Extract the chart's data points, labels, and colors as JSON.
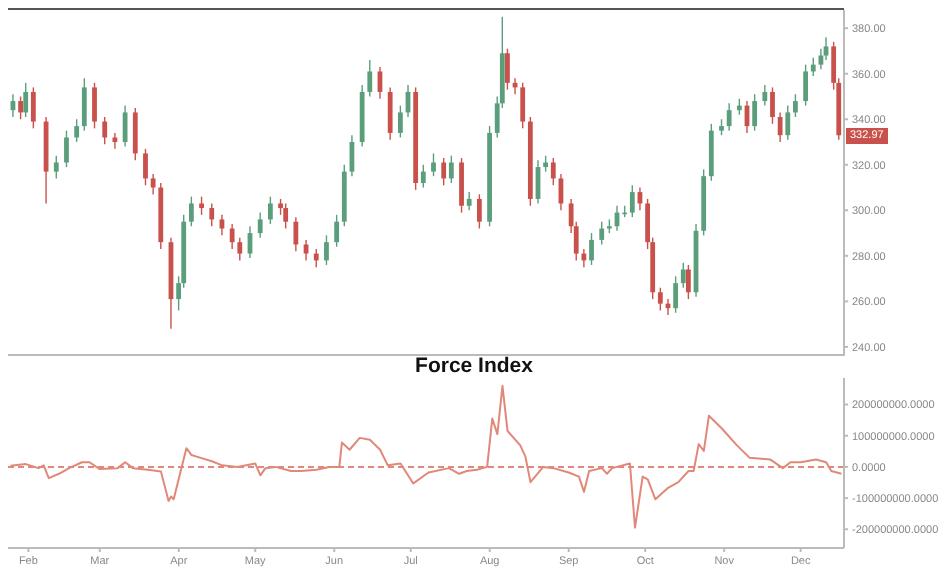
{
  "chart_data": [
    {
      "type": "candlestick",
      "x": [
        "--01-26",
        "--01-29",
        "--01-31",
        "--02-03",
        "--02-08",
        "--02-12",
        "--02-16",
        "--02-20",
        "--02-23",
        "--02-27",
        "--03-03",
        "--03-07",
        "--03-11",
        "--03-15",
        "--03-19",
        "--03-22",
        "--03-25",
        "--03-29",
        "--04-01",
        "--04-03",
        "--04-06",
        "--04-10",
        "--04-14",
        "--04-18",
        "--04-22",
        "--04-25",
        "--04-29",
        "--05-03",
        "--05-07",
        "--05-11",
        "--05-13",
        "--05-17",
        "--05-21",
        "--05-25",
        "--05-29",
        "--06-02",
        "--06-05",
        "--06-08",
        "--06-12",
        "--06-15",
        "--06-19",
        "--06-23",
        "--06-27",
        "--06-30",
        "--07-03",
        "--07-06",
        "--07-10",
        "--07-14",
        "--07-17",
        "--07-21",
        "--07-24",
        "--07-28",
        "--08-01",
        "--08-04",
        "--08-06",
        "--08-08",
        "--08-11",
        "--08-14",
        "--08-17",
        "--08-20",
        "--08-23",
        "--08-26",
        "--08-29",
        "--09-02",
        "--09-04",
        "--09-07",
        "--09-10",
        "--09-14",
        "--09-17",
        "--09-20",
        "--09-23",
        "--09-26",
        "--09-29",
        "--10-02",
        "--10-04",
        "--10-07",
        "--10-10",
        "--10-13",
        "--10-16",
        "--10-18",
        "--10-21",
        "--10-24",
        "--10-27",
        "--10-31",
        "--11-03",
        "--11-07",
        "--11-10",
        "--11-13",
        "--11-17",
        "--11-20",
        "--11-23",
        "--11-26",
        "--11-29",
        "--12-03",
        "--12-06",
        "--12-09",
        "--12-11",
        "--12-14",
        "--12-16"
      ],
      "ohlc": [
        [
          344,
          351,
          341,
          348
        ],
        [
          348,
          350,
          340,
          343
        ],
        [
          343,
          356,
          341,
          352
        ],
        [
          352,
          354,
          336,
          339
        ],
        [
          339,
          341,
          303,
          317
        ],
        [
          317,
          324,
          314,
          321
        ],
        [
          321,
          335,
          319,
          332
        ],
        [
          332,
          340,
          330,
          337
        ],
        [
          337,
          358,
          335,
          354
        ],
        [
          354,
          356,
          336,
          339
        ],
        [
          339,
          341,
          329,
          332
        ],
        [
          332,
          334,
          327,
          330
        ],
        [
          330,
          346,
          328,
          343
        ],
        [
          343,
          345,
          322,
          325
        ],
        [
          325,
          327,
          311,
          314
        ],
        [
          314,
          316,
          307,
          310
        ],
        [
          310,
          312,
          283,
          286
        ],
        [
          286,
          288,
          248,
          261
        ],
        [
          261,
          271,
          256,
          268
        ],
        [
          268,
          298,
          266,
          295
        ],
        [
          295,
          306,
          293,
          303
        ],
        [
          303,
          306,
          298,
          301
        ],
        [
          301,
          303,
          293,
          296
        ],
        [
          296,
          298,
          289,
          292
        ],
        [
          292,
          294,
          283,
          286
        ],
        [
          286,
          288,
          278,
          281
        ],
        [
          281,
          293,
          279,
          290
        ],
        [
          290,
          299,
          288,
          296
        ],
        [
          296,
          306,
          294,
          303
        ],
        [
          303,
          305,
          298,
          301
        ],
        [
          301,
          303,
          292,
          295
        ],
        [
          295,
          297,
          282,
          285
        ],
        [
          285,
          287,
          278,
          281
        ],
        [
          281,
          283,
          275,
          278
        ],
        [
          278,
          289,
          276,
          286
        ],
        [
          286,
          298,
          284,
          295
        ],
        [
          295,
          320,
          293,
          317
        ],
        [
          317,
          333,
          315,
          330
        ],
        [
          330,
          355,
          328,
          352
        ],
        [
          352,
          366,
          350,
          361
        ],
        [
          361,
          363,
          349,
          352
        ],
        [
          352,
          354,
          331,
          334
        ],
        [
          334,
          346,
          332,
          343
        ],
        [
          343,
          355,
          341,
          352
        ],
        [
          352,
          354,
          309,
          312
        ],
        [
          312,
          320,
          310,
          317
        ],
        [
          317,
          325,
          315,
          321
        ],
        [
          321,
          323,
          311,
          314
        ],
        [
          314,
          324,
          312,
          321
        ],
        [
          321,
          323,
          299,
          302
        ],
        [
          302,
          308,
          300,
          305
        ],
        [
          305,
          307,
          292,
          295
        ],
        [
          295,
          337,
          293,
          334
        ],
        [
          334,
          350,
          332,
          347
        ],
        [
          347,
          385,
          345,
          369
        ],
        [
          369,
          371,
          353,
          356
        ],
        [
          356,
          358,
          351,
          354
        ],
        [
          354,
          356,
          336,
          339
        ],
        [
          339,
          341,
          302,
          305
        ],
        [
          305,
          322,
          303,
          319
        ],
        [
          319,
          324,
          317,
          321
        ],
        [
          321,
          323,
          311,
          314
        ],
        [
          314,
          316,
          300,
          303
        ],
        [
          303,
          305,
          290,
          293
        ],
        [
          293,
          295,
          278,
          281
        ],
        [
          281,
          283,
          275,
          278
        ],
        [
          278,
          290,
          276,
          287
        ],
        [
          287,
          295,
          285,
          292
        ],
        [
          292,
          296,
          290,
          293
        ],
        [
          293,
          302,
          291,
          299
        ],
        [
          299,
          302,
          297,
          299
        ],
        [
          299,
          311,
          297,
          308
        ],
        [
          308,
          310,
          300,
          303
        ],
        [
          303,
          305,
          283,
          286
        ],
        [
          286,
          288,
          261,
          264
        ],
        [
          264,
          266,
          256,
          259
        ],
        [
          259,
          261,
          254,
          257
        ],
        [
          257,
          271,
          255,
          268
        ],
        [
          268,
          277,
          266,
          274
        ],
        [
          274,
          276,
          261,
          264
        ],
        [
          264,
          294,
          262,
          291
        ],
        [
          291,
          318,
          289,
          315
        ],
        [
          315,
          338,
          313,
          335
        ],
        [
          335,
          340,
          333,
          337
        ],
        [
          337,
          347,
          335,
          344
        ],
        [
          344,
          349,
          342,
          346
        ],
        [
          346,
          348,
          334,
          337
        ],
        [
          337,
          351,
          335,
          348
        ],
        [
          348,
          355,
          346,
          352
        ],
        [
          352,
          354,
          338,
          341
        ],
        [
          341,
          343,
          330,
          333
        ],
        [
          333,
          346,
          331,
          343
        ],
        [
          343,
          351,
          341,
          348
        ],
        [
          348,
          364,
          346,
          361
        ],
        [
          361,
          367,
          359,
          364
        ],
        [
          364,
          371,
          362,
          368
        ],
        [
          368,
          376,
          366,
          372
        ],
        [
          372,
          374,
          353,
          356
        ],
        [
          356,
          358,
          331,
          332.97
        ]
      ],
      "xlim": [
        "--01-24",
        "--12-18"
      ],
      "ylim": [
        236,
        388
      ],
      "yticks": [
        {
          "value": 240,
          "label": "240.00"
        },
        {
          "value": 260,
          "label": "260.00"
        },
        {
          "value": 280,
          "label": "280.00"
        },
        {
          "value": 300,
          "label": "300.00"
        },
        {
          "value": 320,
          "label": "320.00"
        },
        {
          "value": 340,
          "label": "340.00"
        },
        {
          "value": 360,
          "label": "360.00"
        },
        {
          "value": 380,
          "label": "380.00"
        }
      ],
      "tick_labels": "y",
      "annotations": [
        {
          "text": "332.97",
          "y": 332.97
        }
      ]
    },
    {
      "type": "line",
      "title": "Force Index",
      "x": [
        "--01-25",
        "--01-31",
        "--02-05",
        "--02-07",
        "--02-09",
        "--02-13",
        "--02-17",
        "--02-22",
        "--02-25",
        "--03-01",
        "--03-08",
        "--03-11",
        "--03-14",
        "--03-20",
        "--03-25",
        "--03-28",
        "--03-29",
        "--03-30",
        "--04-04",
        "--04-06",
        "--04-08",
        "--04-14",
        "--04-18",
        "--04-24",
        "--05-01",
        "--05-03",
        "--05-05",
        "--05-09",
        "--05-15",
        "--05-19",
        "--05-25",
        "--05-30",
        "--06-03",
        "--06-04",
        "--06-07",
        "--06-11",
        "--06-15",
        "--06-19",
        "--06-22",
        "--06-27",
        "--07-02",
        "--07-08",
        "--07-16",
        "--07-20",
        "--07-23",
        "--07-27",
        "--07-31",
        "--08-02",
        "--08-04",
        "--08-06",
        "--08-08",
        "--08-13",
        "--08-15",
        "--08-17",
        "--08-22",
        "--08-26",
        "--09-01",
        "--09-05",
        "--09-07",
        "--09-09",
        "--09-14",
        "--09-16",
        "--09-18",
        "--09-25",
        "--09-27",
        "--09-30",
        "--10-02",
        "--10-05",
        "--10-10",
        "--10-14",
        "--10-18",
        "--10-20",
        "--10-22",
        "--10-24",
        "--10-26",
        "--10-31",
        "--11-06",
        "--11-11",
        "--11-19",
        "--11-24",
        "--11-27",
        "--12-01",
        "--12-07",
        "--12-11",
        "--12-13",
        "--12-17"
      ],
      "series": [
        {
          "color": "#e0887a",
          "values": [
            4000000,
            9000000,
            -4000000,
            5000000,
            -36000000,
            -22000000,
            -4000000,
            15000000,
            15000000,
            -7000000,
            -4000000,
            15000000,
            -4000000,
            -9000000,
            -15000000,
            -109000000,
            -95000000,
            -104000000,
            60000000,
            38000000,
            33000000,
            18000000,
            5000000,
            0,
            11000000,
            -27000000,
            -4000000,
            0,
            -13000000,
            -13000000,
            -9000000,
            0,
            0,
            78000000,
            55000000,
            93000000,
            87000000,
            55000000,
            5000000,
            11000000,
            -53000000,
            -18000000,
            -4000000,
            -22000000,
            -13000000,
            -9000000,
            0,
            155000000,
            105000000,
            260000000,
            115000000,
            69000000,
            33000000,
            -49000000,
            0,
            -4000000,
            -18000000,
            -31000000,
            -80000000,
            -13000000,
            -4000000,
            -22000000,
            -4000000,
            11000000,
            -195000000,
            -31000000,
            -40000000,
            -104000000,
            -67000000,
            -49000000,
            -13000000,
            -13000000,
            73000000,
            51000000,
            164000000,
            124000000,
            69000000,
            29000000,
            24000000,
            -4000000,
            15000000,
            15000000,
            24000000,
            15000000,
            -13000000,
            -22000000
          ]
        }
      ],
      "xlim": [
        "--01-24",
        "--12-18"
      ],
      "xticks": [
        {
          "value": "--02-01",
          "label": "Feb"
        },
        {
          "value": "--03-01",
          "label": "Mar"
        },
        {
          "value": "--04-01",
          "label": "Apr"
        },
        {
          "value": "--05-01",
          "label": "May"
        },
        {
          "value": "--06-01",
          "label": "Jun"
        },
        {
          "value": "--07-01",
          "label": "Jul"
        },
        {
          "value": "--08-01",
          "label": "Aug"
        },
        {
          "value": "--09-01",
          "label": "Sep"
        },
        {
          "value": "--10-01",
          "label": "Oct"
        },
        {
          "value": "--11-01",
          "label": "Nov"
        },
        {
          "value": "--12-01",
          "label": "Dec"
        }
      ],
      "ylim": [
        -260000000,
        285000000
      ],
      "yticks": [
        {
          "value": -200000000,
          "label": "-200000000.0000"
        },
        {
          "value": -100000000,
          "label": "-100000000.0000"
        },
        {
          "value": 0,
          "label": "0.0000"
        },
        {
          "value": 100000000,
          "label": "100000000.0000"
        },
        {
          "value": 200000000,
          "label": "200000000.0000"
        }
      ],
      "ref_lines": [
        {
          "axis": "y",
          "value": 0,
          "color": "#e0887a",
          "line_style": "dashed"
        }
      ]
    }
  ]
}
